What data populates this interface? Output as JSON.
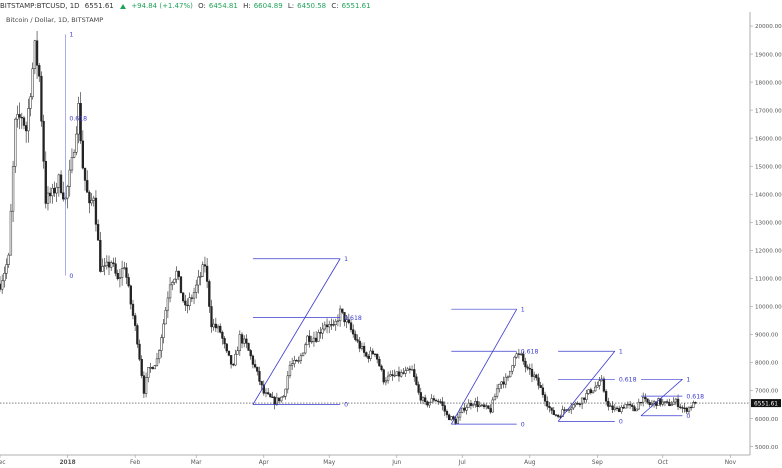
{
  "header": {
    "symbol_line": "BITSTAMP:BTCUSD, 1D",
    "last": "6551.61",
    "change": "+94.84 (+1.47%)",
    "o_label": "O:",
    "o": "6454.81",
    "h_label": "H:",
    "h": "6604.89",
    "l_label": "L:",
    "l": "6450.58",
    "c_label": "C:",
    "c": "6551.61"
  },
  "subtitle": "Bitcoin / Dollar, 1D, BITSTAMP",
  "price_tag": "6551.61",
  "colors": {
    "candle": "#222222",
    "fib": "#3a3ad0",
    "axis_text": "#555555",
    "price_tag_bg": "#111111"
  },
  "chart_data": {
    "type": "candlestick",
    "title": "Bitcoin / Dollar, 1D, BITSTAMP",
    "xlabel": "",
    "ylabel": "",
    "ylim": [
      4700,
      20500
    ],
    "y_ticks": [
      5000,
      6000,
      7000,
      8000,
      9000,
      10000,
      11000,
      12000,
      13000,
      14000,
      15000,
      16000,
      17000,
      18000,
      19000,
      20000
    ],
    "y_tick_labels": [
      "5000.00",
      "6000.00",
      "7000.00",
      "8000.00",
      "9000.00",
      "10000.00",
      "11000.00",
      "12000.00",
      "13000.00",
      "14000.00",
      "15000.00",
      "16000.00",
      "17000.00",
      "18000.00",
      "19000.00",
      "20000.00"
    ],
    "x_range": [
      "2017-12-01",
      "2018-11-10"
    ],
    "x_ticks": [
      {
        "date": "2017-12-01",
        "label": "Dec"
      },
      {
        "date": "2018-01-01",
        "label": "2018"
      },
      {
        "date": "2018-02-01",
        "label": "Feb"
      },
      {
        "date": "2018-03-01",
        "label": "Mar"
      },
      {
        "date": "2018-04-01",
        "label": "Apr"
      },
      {
        "date": "2018-05-01",
        "label": "May"
      },
      {
        "date": "2018-06-01",
        "label": "Jun"
      },
      {
        "date": "2018-07-01",
        "label": "Jul"
      },
      {
        "date": "2018-08-01",
        "label": "Aug"
      },
      {
        "date": "2018-09-01",
        "label": "Sep"
      },
      {
        "date": "2018-10-01",
        "label": "Oct"
      },
      {
        "date": "2018-11-01",
        "label": "Nov"
      }
    ],
    "current_price": 6551.61,
    "price_path": [
      [
        "2017-12-01",
        10800
      ],
      [
        "2017-12-05",
        11700
      ],
      [
        "2017-12-08",
        16500
      ],
      [
        "2017-12-11",
        16800
      ],
      [
        "2017-12-13",
        16300
      ],
      [
        "2017-12-17",
        19200
      ],
      [
        "2017-12-19",
        18200
      ],
      [
        "2017-12-22",
        13800
      ],
      [
        "2017-12-25",
        14000
      ],
      [
        "2017-12-28",
        14500
      ],
      [
        "2017-12-31",
        13800
      ],
      [
        "2018-01-03",
        15100
      ],
      [
        "2018-01-06",
        17100
      ],
      [
        "2018-01-08",
        15000
      ],
      [
        "2018-01-11",
        13500
      ],
      [
        "2018-01-13",
        14000
      ],
      [
        "2018-01-16",
        11400
      ],
      [
        "2018-01-18",
        11300
      ],
      [
        "2018-01-21",
        11600
      ],
      [
        "2018-01-24",
        10900
      ],
      [
        "2018-01-27",
        11500
      ],
      [
        "2018-01-30",
        10100
      ],
      [
        "2018-02-02",
        8800
      ],
      [
        "2018-02-05",
        7000
      ],
      [
        "2018-02-07",
        7700
      ],
      [
        "2018-02-11",
        8100
      ],
      [
        "2018-02-14",
        9400
      ],
      [
        "2018-02-17",
        10900
      ],
      [
        "2018-02-20",
        11200
      ],
      [
        "2018-02-24",
        9900
      ],
      [
        "2018-02-28",
        10500
      ],
      [
        "2018-03-05",
        11500
      ],
      [
        "2018-03-08",
        9400
      ],
      [
        "2018-03-12",
        9100
      ],
      [
        "2018-03-15",
        8300
      ],
      [
        "2018-03-18",
        7800
      ],
      [
        "2018-03-21",
        8900
      ],
      [
        "2018-03-24",
        8600
      ],
      [
        "2018-03-28",
        7800
      ],
      [
        "2018-04-01",
        6900
      ],
      [
        "2018-04-06",
        6600
      ],
      [
        "2018-04-10",
        6800
      ],
      [
        "2018-04-13",
        7900
      ],
      [
        "2018-04-17",
        8000
      ],
      [
        "2018-04-21",
        8900
      ],
      [
        "2018-04-25",
        8900
      ],
      [
        "2018-04-29",
        9400
      ],
      [
        "2018-05-03",
        9200
      ],
      [
        "2018-05-06",
        9800
      ],
      [
        "2018-05-10",
        9300
      ],
      [
        "2018-05-14",
        8700
      ],
      [
        "2018-05-18",
        8200
      ],
      [
        "2018-05-22",
        8400
      ],
      [
        "2018-05-26",
        7400
      ],
      [
        "2018-05-30",
        7500
      ],
      [
        "2018-06-04",
        7600
      ],
      [
        "2018-06-08",
        7700
      ],
      [
        "2018-06-11",
        6900
      ],
      [
        "2018-06-14",
        6500
      ],
      [
        "2018-06-18",
        6700
      ],
      [
        "2018-06-21",
        6600
      ],
      [
        "2018-06-24",
        6100
      ],
      [
        "2018-06-28",
        5900
      ],
      [
        "2018-07-02",
        6400
      ],
      [
        "2018-07-06",
        6600
      ],
      [
        "2018-07-10",
        6400
      ],
      [
        "2018-07-14",
        6300
      ],
      [
        "2018-07-18",
        7300
      ],
      [
        "2018-07-22",
        7400
      ],
      [
        "2018-07-25",
        8300
      ],
      [
        "2018-07-28",
        8200
      ],
      [
        "2018-07-31",
        7700
      ],
      [
        "2018-08-03",
        7500
      ],
      [
        "2018-08-07",
        6900
      ],
      [
        "2018-08-11",
        6200
      ],
      [
        "2018-08-14",
        6100
      ],
      [
        "2018-08-18",
        6400
      ],
      [
        "2018-08-22",
        6500
      ],
      [
        "2018-08-25",
        6700
      ],
      [
        "2018-08-29",
        7000
      ],
      [
        "2018-09-03",
        7300
      ],
      [
        "2018-09-06",
        6400
      ],
      [
        "2018-09-10",
        6300
      ],
      [
        "2018-09-14",
        6500
      ],
      [
        "2018-09-18",
        6300
      ],
      [
        "2018-09-21",
        6700
      ],
      [
        "2018-09-25",
        6500
      ],
      [
        "2018-09-29",
        6600
      ],
      [
        "2018-10-03",
        6500
      ],
      [
        "2018-10-07",
        6600
      ],
      [
        "2018-10-11",
        6300
      ],
      [
        "2018-10-13",
        6400
      ],
      [
        "2018-10-16",
        6550
      ]
    ],
    "fib_retracements": [
      {
        "x_start": "2017-12-31",
        "x_end": "2017-12-31",
        "levels": [
          {
            "ratio": "1",
            "price": 19700
          },
          {
            "ratio": "0.618",
            "price": 16700
          },
          {
            "ratio": "0",
            "price": 11100
          }
        ]
      },
      {
        "x_start": "2018-03-27",
        "x_end": "2018-05-06",
        "levels": [
          {
            "ratio": "1",
            "price": 11700
          },
          {
            "ratio": "0.618",
            "price": 9600
          },
          {
            "ratio": "0",
            "price": 6500
          }
        ]
      },
      {
        "x_start": "2018-06-26",
        "x_end": "2018-07-26",
        "levels": [
          {
            "ratio": "1",
            "price": 9900
          },
          {
            "ratio": "0.618",
            "price": 8400
          },
          {
            "ratio": "0",
            "price": 5800
          }
        ]
      },
      {
        "x_start": "2018-08-14",
        "x_end": "2018-09-09",
        "levels": [
          {
            "ratio": "1",
            "price": 8400
          },
          {
            "ratio": "0.618",
            "price": 7400
          },
          {
            "ratio": "0",
            "price": 5900
          }
        ]
      },
      {
        "x_start": "2018-09-21",
        "x_end": "2018-10-10",
        "levels": [
          {
            "ratio": "1",
            "price": 7400
          },
          {
            "ratio": "0.618",
            "price": 6800
          },
          {
            "ratio": "0",
            "price": 6100
          }
        ]
      }
    ],
    "grid": false,
    "legend": "none"
  }
}
